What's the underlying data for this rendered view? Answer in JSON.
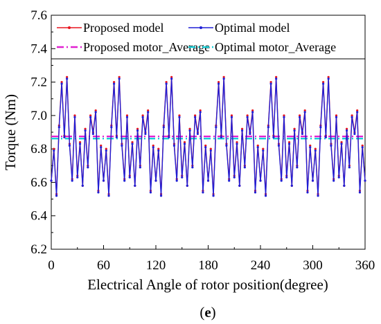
{
  "figure_label": {
    "prefix": "(",
    "letter": "e",
    "suffix": ")"
  },
  "chart_data": {
    "type": "line",
    "title": "",
    "xlabel": "Electrical Angle of rotor position(degree)",
    "ylabel": "Torque (Nm)",
    "xlim": [
      0,
      360
    ],
    "ylim": [
      6.2,
      7.6
    ],
    "xticks": [
      0,
      60,
      120,
      180,
      240,
      300,
      360
    ],
    "yticks": [
      6.2,
      6.4,
      6.6,
      6.8,
      7.0,
      7.2,
      7.4,
      7.6
    ],
    "xtick_labels": [
      "0",
      "60",
      "120",
      "180",
      "240",
      "300",
      "360"
    ],
    "ytick_labels": [
      "6.2",
      "6.4",
      "6.6",
      "6.8",
      "7.0",
      "7.2",
      "7.4",
      "7.6"
    ],
    "grid": false,
    "legend_position": "top",
    "period_degrees": 60,
    "series": [
      {
        "name": "Proposed model",
        "color": "#e8141e",
        "style": "solid-with-dots",
        "one_period": {
          "x": [
            0,
            3,
            6,
            9,
            12,
            15,
            18,
            21,
            24,
            27,
            30,
            33,
            36,
            39,
            42,
            45,
            48,
            51,
            54,
            57,
            60
          ],
          "y": [
            6.61,
            6.8,
            6.53,
            6.94,
            7.2,
            6.88,
            7.23,
            6.83,
            6.62,
            7.0,
            6.64,
            6.84,
            6.58,
            6.92,
            6.7,
            7.0,
            6.9,
            7.03,
            6.55,
            6.82,
            6.61
          ]
        }
      },
      {
        "name": "Optimal model",
        "color": "#1f1fd6",
        "style": "solid-with-dots",
        "one_period": {
          "x": [
            0,
            3,
            6,
            9,
            12,
            15,
            18,
            21,
            24,
            27,
            30,
            33,
            36,
            39,
            42,
            45,
            48,
            51,
            54,
            57,
            60
          ],
          "y": [
            6.61,
            6.79,
            6.52,
            6.93,
            7.19,
            6.87,
            7.22,
            6.82,
            6.61,
            6.99,
            6.63,
            6.83,
            6.58,
            6.91,
            6.69,
            6.99,
            6.89,
            7.02,
            6.54,
            6.81,
            6.61
          ]
        }
      },
      {
        "name": "Proposed motor_Average",
        "color": "#e020d0",
        "style": "dash-dot",
        "constant": 6.875
      },
      {
        "name": "Optimal motor_Average",
        "color": "#18d0d8",
        "style": "dash-dot",
        "constant": 6.862
      }
    ]
  }
}
